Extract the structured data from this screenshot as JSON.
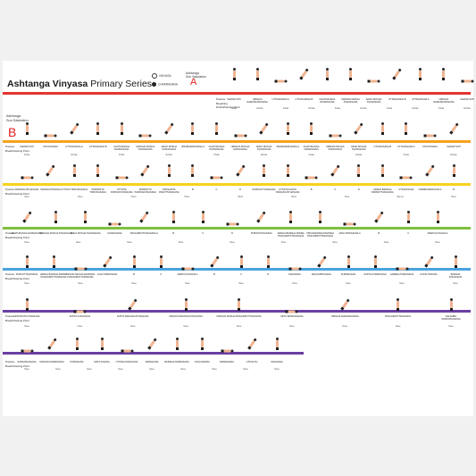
{
  "title_bold": "Ashtanga Vinyasa",
  "title_rest": "Primary Series",
  "legend": {
    "vinyasa": "VINYASA",
    "chakrasana": "CHAKRASANA"
  },
  "sun_a": {
    "line1": "Ashtanga",
    "line2": "Sun Salutation",
    "letter": "A"
  },
  "sun_b": {
    "line1": "Ashtanga",
    "line2": "Sun Salutation",
    "letter": "B"
  },
  "row_labels": {
    "posture": "Posture",
    "breathing": "Breathing",
    "drishti": "Drishti/Gazing Point",
    "breath_drishti": "Breath/Gazing Point"
  },
  "colors": {
    "red": "#e3342f",
    "orange": "#f6a21b",
    "yellow": "#f7d21e",
    "green": "#7fbf3f",
    "blue": "#4aa3df",
    "purple": "#6a3fa3",
    "skin": "#f0b491",
    "hair": "#2a2a2a"
  },
  "rows": [
    {
      "labels": [
        "SAMASTHITI",
        "URDHVA NAMASKARASANA",
        "UTTANASANA A",
        "UTTANASANA B",
        "CHATURANGA DANDASANA",
        "URDHVA MUKHA SVANASANA",
        "ADHO MUKHA SVANASANA",
        "UTTANASANA B",
        "UTTANASANA A",
        "URDHVA NAMASKARASANA",
        "SAMASTHITI"
      ],
      "subs": [
        "Inhale",
        "Exhale",
        "Inhale",
        "Exhale",
        "Inhale",
        "Exhale",
        "Inhale",
        "Exhale",
        "Inhale",
        "Exhale"
      ]
    },
    {
      "labels": [
        "SAMASTHITI",
        "UTKATASANA",
        "UTTANASANA A",
        "UTTANASANA B",
        "CHATURANGA DANDASANA",
        "URDHVA MUKHA SVANASANA",
        "ADHO MUKHA SVANASANA",
        "VIRABHADRASANA A",
        "CHATURANGA DANDASANA",
        "URDHVA MUKHA SVANASANA",
        "ADHO MUKHA SVANASANA",
        "VIRABHADRASANA A",
        "CHATURANGA DANDASANA",
        "URDHVA MUKHA SVANASANA",
        "ADHO MUKHA SVANASANA",
        "UTTANASANA B",
        "UTTANASANA A",
        "UTKATASANA",
        "SAMASTHITI"
      ],
      "subs": [
        "Inhale",
        "Exhale",
        "Inhale",
        "Exhale",
        "Inhale",
        "Exhale",
        "Inhale",
        "Exhale",
        "Inhale",
        "Exhale"
      ]
    },
    {
      "labels": [
        "PADANGUSTHASANA",
        "PADAHASTASANA",
        "UTTHITA TRIKONASANA",
        "PARIVRTTA TRIKONASANA",
        "UTTHITA PARSVAKONASANA",
        "PARIVRTTA PARSVAKONASANA",
        "PRASARITA PADOTTANASANA",
        "B",
        "C",
        "D",
        "PARSVOTTANASANA",
        "UTTHITA HASTA PADANGUSTHASANA",
        "B",
        "C",
        "D",
        "ARDHA BADDHA PADMOTTANASANA",
        "UTKATASANA",
        "VIRABHADRASANA A",
        "B"
      ],
      "subs": [
        "Nose",
        "Nose",
        "Hand",
        "Hand",
        "Hand",
        "Hand",
        "Nose",
        "Big toe",
        "Nose"
      ]
    },
    {
      "labels": [
        "CHATURANGA DANDASANA",
        "URDHVA MUKHA SVANASANA",
        "ADHO MUKHA SVANASANA",
        "DANDASANA",
        "PASCHIMOTTANASANA A",
        "B",
        "C",
        "D",
        "PURVATTANASANA",
        "ARDHA BADDHA PADMA PASCHIMOTTANASANA",
        "TIRIANGMUKHAIKAPADA PASCHIMOTTANASANA",
        "JANU SIRSASANA A",
        "B",
        "C",
        "MARICHYASANA A"
      ],
      "subs": [
        "Nose",
        "Nose",
        "Nose",
        "Nose",
        "Nose",
        "Nose",
        "Nose",
        "Nose",
        "Nose"
      ]
    },
    {
      "labels": [
        "PURVOTTANASANA",
        "ARDHA BADDHA PADMA PASCHIMOTTANASANA",
        "TRIANG MUKHA EKAPADA PASCHIMOTTANASANA",
        "JANU SIRSASANA",
        "B",
        "C",
        "MARICHYASANA A",
        "B",
        "C",
        "D",
        "NAVASANA",
        "BHUJAPIDASANA",
        "KURMASANA",
        "SUPTA KURMASANA",
        "GARBHA PINDASANA",
        "KUKKUTASANA",
        "BADDHA KONASANA"
      ],
      "subs": [
        "Nose",
        "Nose",
        "Nose",
        "Nose",
        "Nose",
        "Nose",
        "Nose",
        "Nose",
        "Nose"
      ]
    },
    {
      "labels": [
        "UPAVISHTA KONASANA",
        "SUPTA KONASANA",
        "SUPTA PADANGUSTHASANA",
        "UBHAYA PADANGUSTHASANA",
        "URDHVA MUKHA PASCHIMOTTANASANA",
        "SETU BANDHASANA",
        "URDHVA DHANURASANA",
        "PASCHIMOTTANASANA",
        "SALAMBA SARVANGASANA"
      ],
      "subs": [
        "Nose",
        "Nose",
        "Nose",
        "Nose",
        "Nose",
        "Nose",
        "Nose",
        "Nose",
        "Nose"
      ]
    },
    {
      "labels": [
        "SARVANGASANA",
        "URDHVA PADMASANA",
        "PINDASANA",
        "MATSYASANA",
        "UTTANA PADASANA",
        "SIRSASANA",
        "BADDHA PADMASANA",
        "YOGA MUDRA",
        "PADMASANA",
        "UTPLUTIH",
        "SAVASANA"
      ],
      "subs": [
        "Nose",
        "Nose",
        "Nose",
        "Nose",
        "Nose",
        "Nose",
        "Nose",
        "Nose",
        "Nose"
      ]
    }
  ]
}
